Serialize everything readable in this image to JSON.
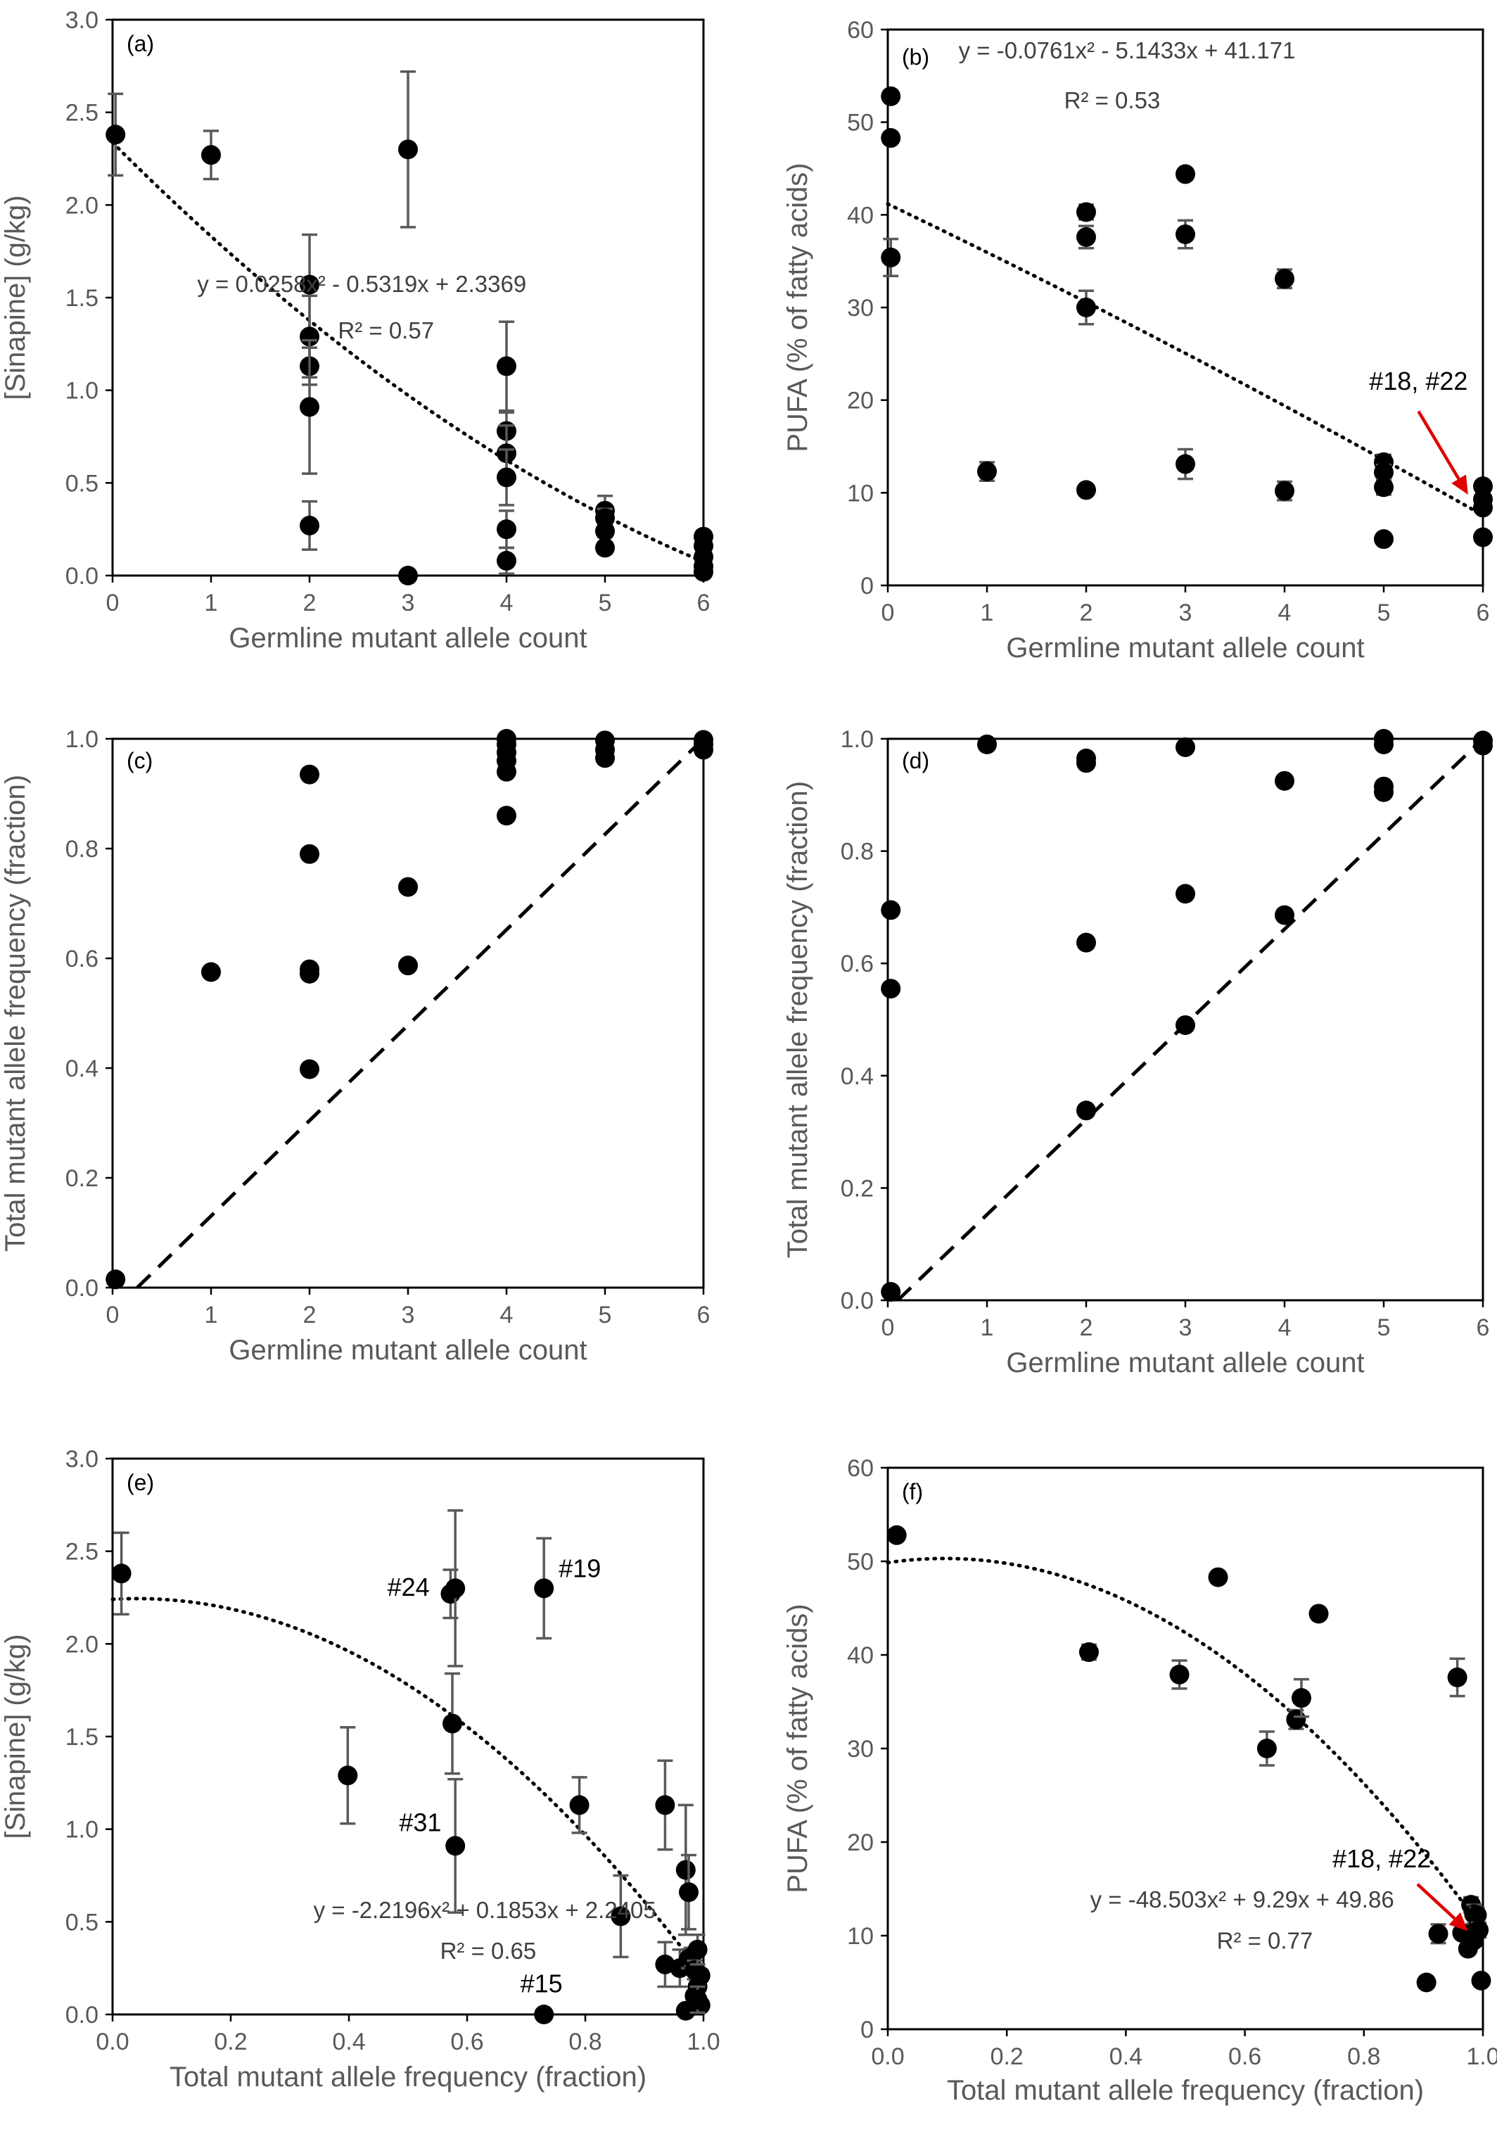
{
  "chart_data": [
    {
      "id": "a",
      "type": "scatter",
      "panel_label": "(a)",
      "xlabel": "Germline mutant allele count",
      "ylabel": "[Sinapine] (g/kg)",
      "xlim": [
        0,
        6
      ],
      "ylim": [
        0,
        3.0
      ],
      "xticks": [
        0,
        1,
        2,
        3,
        4,
        5,
        6
      ],
      "yticks": [
        0.0,
        0.5,
        1.0,
        1.5,
        2.0,
        2.5,
        3.0
      ],
      "y_decimals": 1,
      "points": [
        {
          "x": 0.03,
          "y": 2.38,
          "err": 0.22
        },
        {
          "x": 1,
          "y": 2.27,
          "err": 0.13
        },
        {
          "x": 2,
          "y": 1.57,
          "err": 0.27
        },
        {
          "x": 2,
          "y": 1.29,
          "err": 0.22
        },
        {
          "x": 2,
          "y": 1.13,
          "err": 0.1
        },
        {
          "x": 2,
          "y": 0.91,
          "err": 0.36
        },
        {
          "x": 2,
          "y": 0.27,
          "err": 0.13
        },
        {
          "x": 3,
          "y": 2.3,
          "err": 0.42
        },
        {
          "x": 3,
          "y": 0.0,
          "err": 0
        },
        {
          "x": 4,
          "y": 1.13,
          "err": 0.24
        },
        {
          "x": 4,
          "y": 0.78,
          "err": 0.1
        },
        {
          "x": 4,
          "y": 0.66,
          "err": 0.15
        },
        {
          "x": 4,
          "y": 0.53,
          "err": 0.15
        },
        {
          "x": 4,
          "y": 0.25,
          "err": 0.1
        },
        {
          "x": 4,
          "y": 0.08,
          "err": 0.07
        },
        {
          "x": 5,
          "y": 0.35,
          "err": 0.08
        },
        {
          "x": 5,
          "y": 0.31,
          "err": 0.05
        },
        {
          "x": 5,
          "y": 0.24,
          "err": 0.03
        },
        {
          "x": 5,
          "y": 0.15,
          "err": 0.03
        },
        {
          "x": 6,
          "y": 0.21,
          "err": 0.03
        },
        {
          "x": 6,
          "y": 0.16,
          "err": 0.02
        },
        {
          "x": 6,
          "y": 0.1,
          "err": 0.02
        },
        {
          "x": 6,
          "y": 0.05,
          "err": 0.02
        },
        {
          "x": 6,
          "y": 0.02,
          "err": 0.01
        }
      ],
      "trend": {
        "a": 0.0258,
        "b": -0.5319,
        "c": 2.3369,
        "x0": 0,
        "x1": 6
      },
      "equation": "y = 0.0258x² - 0.5319x + 2.3369",
      "r2": "R² = 0.57"
    },
    {
      "id": "b",
      "type": "scatter",
      "panel_label": "(b)",
      "xlabel": "Germline mutant allele count",
      "ylabel": "PUFA (% of fatty acids)",
      "xlim": [
        0,
        6
      ],
      "ylim": [
        0,
        60
      ],
      "xticks": [
        0,
        1,
        2,
        3,
        4,
        5,
        6
      ],
      "yticks": [
        0,
        10,
        20,
        30,
        40,
        50,
        60
      ],
      "y_decimals": 0,
      "points": [
        {
          "x": 0.03,
          "y": 52.8,
          "err": 0
        },
        {
          "x": 0.03,
          "y": 48.3,
          "err": 0
        },
        {
          "x": 0.03,
          "y": 35.4,
          "err": 2.0
        },
        {
          "x": 1,
          "y": 12.3,
          "err": 1.0
        },
        {
          "x": 2,
          "y": 40.3,
          "err": 0.8
        },
        {
          "x": 2,
          "y": 37.6,
          "err": 1.2
        },
        {
          "x": 2,
          "y": 30.0,
          "err": 1.8
        },
        {
          "x": 2,
          "y": 10.3,
          "err": 0.4
        },
        {
          "x": 3,
          "y": 44.4,
          "err": 0.5
        },
        {
          "x": 3,
          "y": 37.9,
          "err": 1.5
        },
        {
          "x": 3,
          "y": 13.1,
          "err": 1.6
        },
        {
          "x": 4,
          "y": 33.1,
          "err": 1.0
        },
        {
          "x": 4,
          "y": 10.2,
          "err": 1.0
        },
        {
          "x": 5,
          "y": 13.3,
          "err": 0.8
        },
        {
          "x": 5,
          "y": 12.2,
          "err": 0.8
        },
        {
          "x": 5,
          "y": 10.6,
          "err": 0.8
        },
        {
          "x": 5,
          "y": 5.0,
          "err": 0
        },
        {
          "x": 6,
          "y": 10.7,
          "err": 0.5
        },
        {
          "x": 6,
          "y": 9.3,
          "err": 0.5
        },
        {
          "x": 6,
          "y": 8.4,
          "err": 0.5
        },
        {
          "x": 6,
          "y": 5.2,
          "err": 0
        }
      ],
      "trend": {
        "a": -0.0761,
        "b": -5.1433,
        "c": 41.171,
        "x0": 0,
        "x1": 6
      },
      "equation": "y = -0.0761x² - 5.1433x + 41.171",
      "r2": "R² = 0.53",
      "annotation": {
        "text": "#18, #22",
        "tx": 5.35,
        "ty": 21.1,
        "ax": 5.35,
        "ay": 18.8,
        "hx": 5.85,
        "hy": 9.8
      }
    },
    {
      "id": "c",
      "type": "scatter",
      "panel_label": "(c)",
      "xlabel": "Germline mutant allele count",
      "ylabel": "Total mutant allele frequency (fraction)",
      "xlim": [
        0,
        6
      ],
      "ylim": [
        0,
        1.0
      ],
      "xticks": [
        0,
        1,
        2,
        3,
        4,
        5,
        6
      ],
      "yticks": [
        0.0,
        0.2,
        0.4,
        0.6,
        0.8,
        1.0
      ],
      "y_decimals": 1,
      "points": [
        {
          "x": 0.03,
          "y": 0.015
        },
        {
          "x": 1,
          "y": 0.575
        },
        {
          "x": 2,
          "y": 0.935
        },
        {
          "x": 2,
          "y": 0.79
        },
        {
          "x": 2,
          "y": 0.58
        },
        {
          "x": 2,
          "y": 0.572
        },
        {
          "x": 2,
          "y": 0.398
        },
        {
          "x": 3,
          "y": 0.73
        },
        {
          "x": 3,
          "y": 0.587
        },
        {
          "x": 4,
          "y": 1.0
        },
        {
          "x": 4,
          "y": 0.99
        },
        {
          "x": 4,
          "y": 0.975
        },
        {
          "x": 4,
          "y": 0.96
        },
        {
          "x": 4,
          "y": 0.94
        },
        {
          "x": 4,
          "y": 0.86
        },
        {
          "x": 5,
          "y": 0.997
        },
        {
          "x": 5,
          "y": 0.98
        },
        {
          "x": 5,
          "y": 0.965
        },
        {
          "x": 6,
          "y": 0.998
        },
        {
          "x": 6,
          "y": 0.99
        },
        {
          "x": 6,
          "y": 0.98
        }
      ],
      "identity": {
        "x0": 0.25,
        "y0": 0.0,
        "x1": 6,
        "y1": 1.0
      }
    },
    {
      "id": "d",
      "type": "scatter",
      "panel_label": "(d)",
      "xlabel": "Germline mutant allele count",
      "ylabel": "Total mutant allele frequency (fraction)",
      "xlim": [
        0,
        6
      ],
      "ylim": [
        0,
        1.0
      ],
      "xticks": [
        0,
        1,
        2,
        3,
        4,
        5,
        6
      ],
      "yticks": [
        0.0,
        0.2,
        0.4,
        0.6,
        0.8,
        1.0
      ],
      "y_decimals": 1,
      "points": [
        {
          "x": 0.03,
          "y": 0.015
        },
        {
          "x": 0.03,
          "y": 0.555
        },
        {
          "x": 0.03,
          "y": 0.695
        },
        {
          "x": 1,
          "y": 0.99
        },
        {
          "x": 2,
          "y": 0.965
        },
        {
          "x": 2,
          "y": 0.957
        },
        {
          "x": 2,
          "y": 0.637
        },
        {
          "x": 2,
          "y": 0.338
        },
        {
          "x": 3,
          "y": 0.985
        },
        {
          "x": 3,
          "y": 0.724
        },
        {
          "x": 3,
          "y": 0.49
        },
        {
          "x": 4,
          "y": 0.925
        },
        {
          "x": 4,
          "y": 0.686
        },
        {
          "x": 5,
          "y": 1.0
        },
        {
          "x": 5,
          "y": 0.99
        },
        {
          "x": 5,
          "y": 0.915
        },
        {
          "x": 5,
          "y": 0.905
        },
        {
          "x": 6,
          "y": 0.997
        },
        {
          "x": 6,
          "y": 0.988
        }
      ],
      "identity": {
        "x0": 0.1,
        "y0": 0.0,
        "x1": 6,
        "y1": 1.0
      }
    },
    {
      "id": "e",
      "type": "scatter",
      "panel_label": "(e)",
      "xlabel": "Total mutant allele frequency (fraction)",
      "ylabel": "[Sinapine] (g/kg)",
      "xlim": [
        0,
        1.0
      ],
      "ylim": [
        0,
        3.0
      ],
      "xticks": [
        0.0,
        0.2,
        0.4,
        0.6,
        0.8,
        1.0
      ],
      "x_decimals": 1,
      "yticks": [
        0.0,
        0.5,
        1.0,
        1.5,
        2.0,
        2.5,
        3.0
      ],
      "y_decimals": 1,
      "points": [
        {
          "x": 0.015,
          "y": 2.38,
          "err": 0.22
        },
        {
          "x": 0.398,
          "y": 1.29,
          "err": 0.26
        },
        {
          "x": 0.572,
          "y": 2.27,
          "err": 0.13
        },
        {
          "x": 0.58,
          "y": 2.3,
          "err": 0.42
        },
        {
          "x": 0.575,
          "y": 1.57,
          "err": 0.27
        },
        {
          "x": 0.58,
          "y": 0.91,
          "err": 0.36
        },
        {
          "x": 0.73,
          "y": 2.3,
          "err": 0.27
        },
        {
          "x": 0.73,
          "y": 0.0,
          "err": 0
        },
        {
          "x": 0.79,
          "y": 1.13,
          "err": 0.15
        },
        {
          "x": 0.86,
          "y": 0.53,
          "err": 0.22
        },
        {
          "x": 0.935,
          "y": 1.13,
          "err": 0.24
        },
        {
          "x": 0.935,
          "y": 0.27,
          "err": 0.12
        },
        {
          "x": 0.96,
          "y": 0.25,
          "err": 0.1
        },
        {
          "x": 0.97,
          "y": 0.78,
          "err": 0.35
        },
        {
          "x": 0.975,
          "y": 0.66,
          "err": 0.2
        },
        {
          "x": 0.975,
          "y": 0.3,
          "err": 0.05
        },
        {
          "x": 0.98,
          "y": 0.31,
          "err": 0.05
        },
        {
          "x": 0.985,
          "y": 0.24,
          "err": 0.05
        },
        {
          "x": 0.99,
          "y": 0.35,
          "err": 0.08
        },
        {
          "x": 0.995,
          "y": 0.21,
          "err": 0.03
        },
        {
          "x": 0.99,
          "y": 0.15,
          "err": 0.03
        },
        {
          "x": 0.985,
          "y": 0.1,
          "err": 0.02
        },
        {
          "x": 0.995,
          "y": 0.05,
          "err": 0.02
        },
        {
          "x": 0.97,
          "y": 0.02,
          "err": 0.01
        },
        {
          "x": 0.99,
          "y": 0.08,
          "err": 0.07
        }
      ],
      "trend": {
        "a": -2.2196,
        "b": 0.1853,
        "c": 2.2405,
        "x0": 0,
        "x1": 0.995
      },
      "equation": "y = -2.2196x² + 0.1853x + 2.2405",
      "r2": "R² = 0.65",
      "labels": [
        {
          "text": "#24",
          "x": 0.465,
          "y": 2.26
        },
        {
          "text": "#19",
          "x": 0.755,
          "y": 2.36
        },
        {
          "text": "#31",
          "x": 0.485,
          "y": 0.99
        },
        {
          "text": "#15",
          "x": 0.69,
          "y": 0.12
        }
      ]
    },
    {
      "id": "f",
      "type": "scatter",
      "panel_label": "(f)",
      "xlabel": "Total mutant allele frequency (fraction)",
      "ylabel": "PUFA (% of fatty acids)",
      "xlim": [
        0,
        1.0
      ],
      "ylim": [
        0,
        60
      ],
      "xticks": [
        0.0,
        0.2,
        0.4,
        0.6,
        0.8,
        1.0
      ],
      "x_decimals": 1,
      "yticks": [
        0,
        10,
        20,
        30,
        40,
        50,
        60
      ],
      "y_decimals": 0,
      "points": [
        {
          "x": 0.015,
          "y": 52.8,
          "err": 0
        },
        {
          "x": 0.338,
          "y": 40.3,
          "err": 0.8
        },
        {
          "x": 0.49,
          "y": 37.9,
          "err": 1.5
        },
        {
          "x": 0.555,
          "y": 48.3,
          "err": 0
        },
        {
          "x": 0.637,
          "y": 30.0,
          "err": 1.8
        },
        {
          "x": 0.686,
          "y": 33.1,
          "err": 1.0
        },
        {
          "x": 0.695,
          "y": 35.4,
          "err": 2.0
        },
        {
          "x": 0.724,
          "y": 44.4,
          "err": 0
        },
        {
          "x": 0.905,
          "y": 5.0,
          "err": 0
        },
        {
          "x": 0.925,
          "y": 10.2,
          "err": 1.0
        },
        {
          "x": 0.957,
          "y": 37.6,
          "err": 2.0
        },
        {
          "x": 0.965,
          "y": 10.3,
          "err": 0.4
        },
        {
          "x": 0.98,
          "y": 13.3,
          "err": 0.8
        },
        {
          "x": 0.985,
          "y": 12.3,
          "err": 1.0
        },
        {
          "x": 0.975,
          "y": 8.6,
          "err": 0.5
        },
        {
          "x": 0.99,
          "y": 12.2,
          "err": 0.8
        },
        {
          "x": 0.99,
          "y": 10.7,
          "err": 0.6
        },
        {
          "x": 0.993,
          "y": 10.6,
          "err": 0.8
        },
        {
          "x": 0.997,
          "y": 5.2,
          "err": 0
        },
        {
          "x": 0.985,
          "y": 9.5,
          "err": 0.5
        }
      ],
      "trend": {
        "a": -48.503,
        "b": 9.29,
        "c": 49.86,
        "x0": 0,
        "x1": 0.995
      },
      "equation": "y = -48.503x² + 9.29x + 49.86",
      "r2": "R² = 0.77",
      "annotation": {
        "text": "#18, #22",
        "tx": 0.83,
        "ty": 17.3,
        "ax": 0.89,
        "ay": 15.5,
        "hx": 0.975,
        "hy": 10.5
      }
    }
  ]
}
